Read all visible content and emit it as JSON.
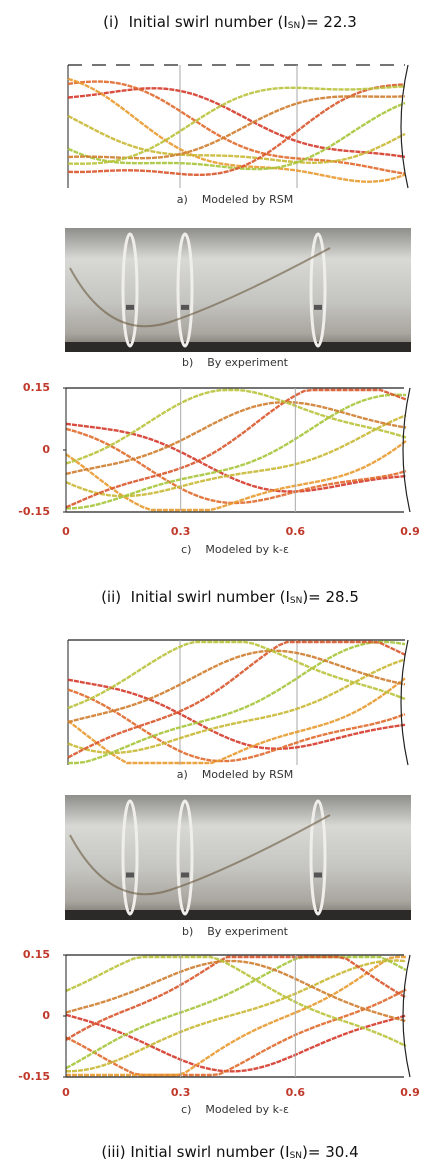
{
  "sections": [
    {
      "heading": {
        "prefix": "(i)  Initial swirl number (I",
        "subscript": "SN",
        "suffix": ")= 22.3"
      },
      "captions": [
        "a)    Modeled by RSM",
        "b)    By experiment",
        "c)    Modeled by k-ε"
      ],
      "plot": {
        "xlim": [
          0,
          0.9
        ],
        "ylim": [
          -0.15,
          0.15
        ],
        "xticks": [
          0,
          0.3,
          0.6,
          0.9
        ],
        "yticks": [
          0.15,
          0,
          -0.15
        ]
      }
    },
    {
      "heading": {
        "prefix": "(ii)  Initial swirl number (I",
        "subscript": "SN",
        "suffix": ")= 28.5"
      },
      "captions": [
        "a)    Modeled by RSM",
        "b)    By experiment",
        "c)    Modeled by k-ε"
      ],
      "plot": {
        "xlim": [
          0,
          0.9
        ],
        "ylim": [
          -0.15,
          0.15
        ],
        "xticks": [
          0,
          0.3,
          0.6,
          0.9
        ],
        "yticks": [
          0.15,
          0,
          -0.15
        ]
      }
    },
    {
      "heading": {
        "prefix": "(iii) Initial swirl number (I",
        "subscript": "SN",
        "suffix": ")= 30.4"
      }
    }
  ]
}
